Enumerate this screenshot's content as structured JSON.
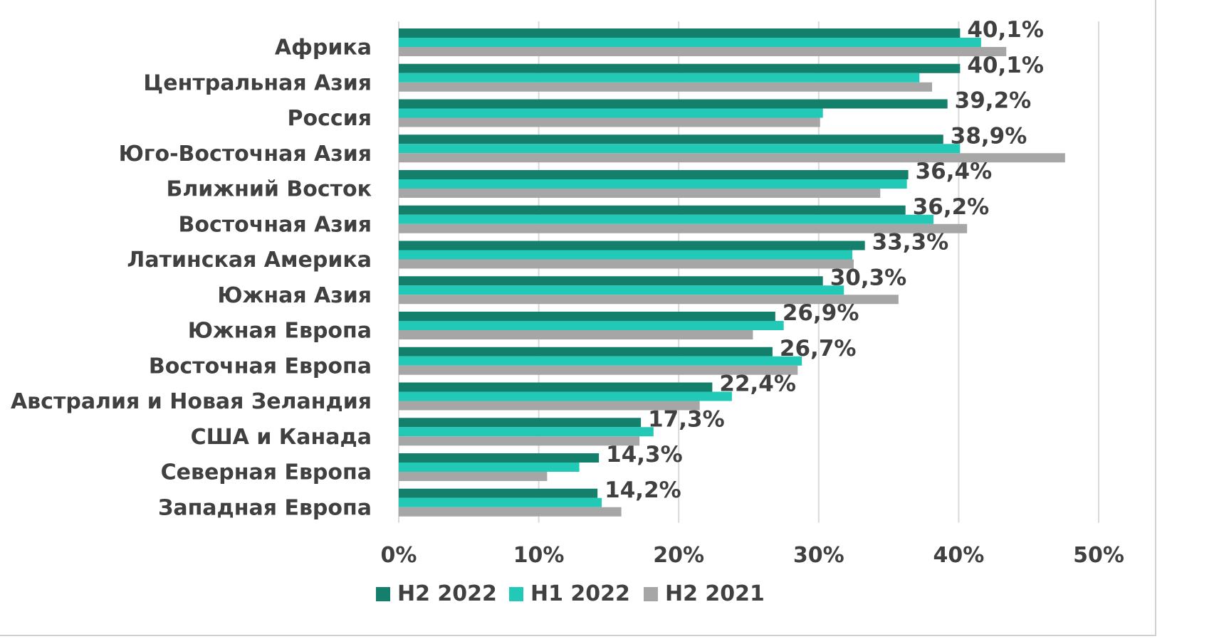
{
  "chart_data": {
    "type": "bar",
    "orientation": "horizontal",
    "categories": [
      "Африка",
      "Центральная Азия",
      "Россия",
      "Юго-Восточная Азия",
      "Ближний Восток",
      "Восточная Азия",
      "Латинская Америка",
      "Южная Азия",
      "Южная Европа",
      "Восточная Европа",
      "Австралия и Новая Зеландия",
      "США и Канада",
      "Северная Европа",
      "Западная Европа"
    ],
    "series": [
      {
        "name": "H2 2022",
        "color": "#147F6B",
        "values": [
          40.1,
          40.1,
          39.2,
          38.9,
          36.4,
          36.2,
          33.3,
          30.3,
          26.9,
          26.7,
          22.4,
          17.3,
          14.3,
          14.2
        ]
      },
      {
        "name": "H1 2022",
        "color": "#22C9B6",
        "values": [
          41.6,
          37.2,
          30.3,
          40.1,
          36.3,
          38.2,
          32.4,
          31.8,
          27.5,
          28.8,
          23.8,
          18.2,
          12.9,
          14.5
        ]
      },
      {
        "name": "H2 2021",
        "color": "#A6A6A6",
        "values": [
          43.4,
          38.1,
          30.1,
          47.6,
          34.4,
          40.6,
          32.5,
          35.7,
          25.3,
          28.5,
          21.5,
          17.2,
          10.6,
          15.9
        ]
      }
    ],
    "data_labels": [
      "40,1%",
      "40,1%",
      "39,2%",
      "38,9%",
      "36,4%",
      "36,2%",
      "33,3%",
      "30,3%",
      "26,9%",
      "26,7%",
      "22,4%",
      "17,3%",
      "14,3%",
      "14,2%"
    ],
    "x_ticks": [
      "0%",
      "10%",
      "20%",
      "30%",
      "40%",
      "50%"
    ],
    "xlim": [
      0,
      50
    ],
    "grid": true,
    "legend_position": "bottom",
    "title": "",
    "xlabel": "",
    "ylabel": ""
  }
}
